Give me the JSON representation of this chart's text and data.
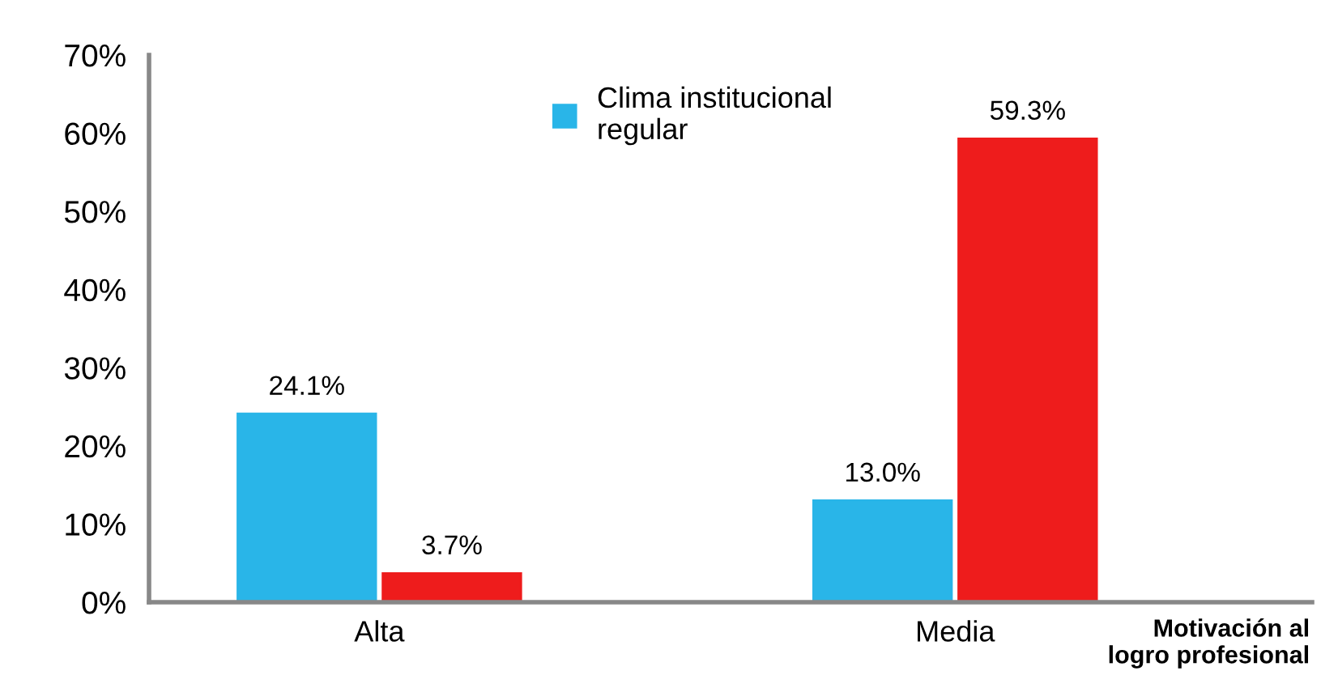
{
  "chart_data": {
    "type": "bar",
    "categories": [
      "Alta",
      "Media"
    ],
    "series": [
      {
        "name": "Clima institucional\nregular",
        "color": "#29b5e8",
        "values": [
          24.1,
          13.0
        ],
        "value_labels": [
          "24.1%",
          "13.0%"
        ]
      },
      {
        "color": "#ee1c1c",
        "values": [
          3.7,
          59.3
        ],
        "value_labels": [
          "3.7%",
          "59.3%"
        ]
      }
    ],
    "xlabel": "Motivación al\nlogro profesional",
    "ylim": [
      0,
      70
    ],
    "yticks": [
      {
        "value": 0,
        "label": "0%"
      },
      {
        "value": 10,
        "label": "10%"
      },
      {
        "value": 20,
        "label": "20%"
      },
      {
        "value": 30,
        "label": "30%"
      },
      {
        "value": 40,
        "label": "40%"
      },
      {
        "value": 50,
        "label": "50%"
      },
      {
        "value": 60,
        "label": "60%"
      },
      {
        "value": 70,
        "label": "70%"
      }
    ],
    "grid": false,
    "legend": "top"
  }
}
